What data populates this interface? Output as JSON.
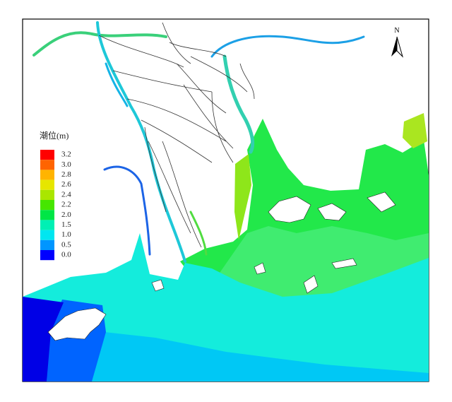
{
  "map": {
    "north_label": "N",
    "legend": {
      "title": "潮位(m)",
      "items": [
        {
          "label": "3.2",
          "color": "#ff0000"
        },
        {
          "label": "3.0",
          "color": "#ff6400"
        },
        {
          "label": "2.8",
          "color": "#ffb400"
        },
        {
          "label": "2.6",
          "color": "#e6e600"
        },
        {
          "label": "2.4",
          "color": "#aae600"
        },
        {
          "label": "2.2",
          "color": "#46e600"
        },
        {
          "label": "2.0",
          "color": "#00e646"
        },
        {
          "label": "1.5",
          "color": "#00f0b4"
        },
        {
          "label": "1.0",
          "color": "#00e6f0"
        },
        {
          "label": "0.5",
          "color": "#0096ff"
        },
        {
          "label": "0.0",
          "color": "#0000ff"
        }
      ]
    }
  }
}
